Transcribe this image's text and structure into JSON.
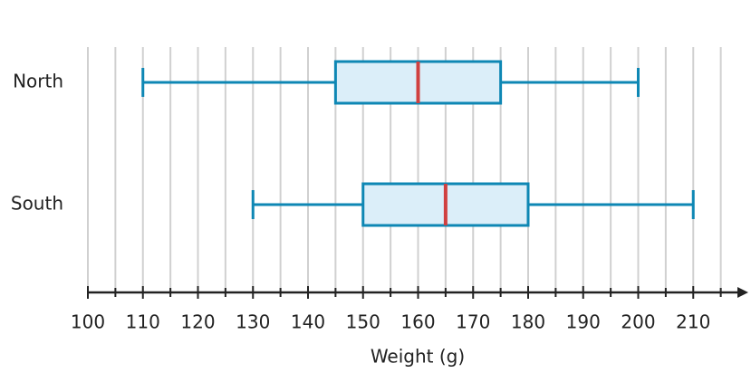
{
  "chart_data": {
    "type": "boxplot",
    "xlabel": "Weight (g)",
    "categories": [
      "North",
      "South"
    ],
    "boxes": [
      {
        "min": 110,
        "q1": 145,
        "median": 160,
        "q3": 175,
        "max": 200
      },
      {
        "min": 130,
        "q1": 150,
        "median": 165,
        "q3": 180,
        "max": 210
      }
    ],
    "box_fill": "#dbeef9",
    "box_color": "#0e87b4",
    "median_color": "#d04040",
    "axis_color": "#222222",
    "xlim": [
      100,
      220
    ],
    "xticks": [
      100,
      110,
      120,
      130,
      140,
      150,
      160,
      170,
      180,
      190,
      200,
      210
    ],
    "xminor_ticks": [
      105,
      115,
      125,
      135,
      145,
      155,
      165,
      175,
      185,
      195,
      205,
      215
    ],
    "grid": true
  }
}
